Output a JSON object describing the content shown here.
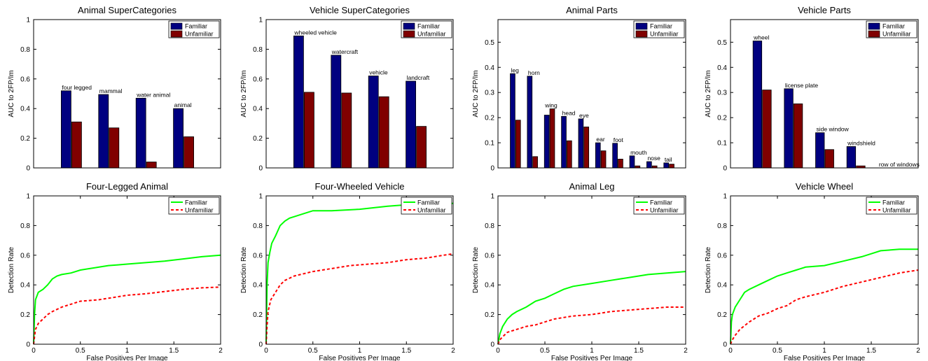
{
  "colors": {
    "familiar_bar": "#000080",
    "unfamiliar_bar": "#800000",
    "familiar_line": "#00ff00",
    "unfamiliar_line": "#ff0000"
  },
  "chart_data": [
    {
      "type": "bar",
      "title": "Animal SuperCategories",
      "xlabel": "",
      "ylabel": "AUC to 2FP/Im",
      "ylim": [
        0,
        1
      ],
      "yticks": [
        "0",
        "0.2",
        "0.4",
        "0.6",
        "0.8",
        "1"
      ],
      "categories": [
        "four legged",
        "mammal",
        "water animal",
        "animal"
      ],
      "series": [
        {
          "name": "Familiar",
          "values": [
            0.52,
            0.495,
            0.47,
            0.4
          ]
        },
        {
          "name": "Unfamiliar",
          "values": [
            0.31,
            0.27,
            0.04,
            0.21
          ]
        }
      ],
      "legend": "top-right"
    },
    {
      "type": "bar",
      "title": "Vehicle SuperCategories",
      "xlabel": "",
      "ylabel": "AUC to 2FP/Im",
      "ylim": [
        0,
        1
      ],
      "yticks": [
        "0",
        "0.2",
        "0.4",
        "0.6",
        "0.8",
        "1"
      ],
      "categories": [
        "wheeled vehicle",
        "watercraft",
        "vehicle",
        "landcraft"
      ],
      "series": [
        {
          "name": "Familiar",
          "values": [
            0.89,
            0.76,
            0.62,
            0.585
          ]
        },
        {
          "name": "Unfamiliar",
          "values": [
            0.51,
            0.505,
            0.48,
            0.28
          ]
        }
      ],
      "legend": "top-right"
    },
    {
      "type": "bar",
      "title": "Animal Parts",
      "xlabel": "",
      "ylabel": "AUC to 2FP/Im",
      "ylim": [
        0,
        0.59
      ],
      "yticks": [
        "0",
        "0.1",
        "0.2",
        "0.3",
        "0.4",
        "0.5"
      ],
      "categories": [
        "leg",
        "horn",
        "wing",
        "head",
        "eye",
        "ear",
        "foot",
        "mouth",
        "nose",
        "tail"
      ],
      "series": [
        {
          "name": "Familiar",
          "values": [
            0.375,
            0.365,
            0.21,
            0.205,
            0.195,
            0.1,
            0.098,
            0.048,
            0.025,
            0.02
          ]
        },
        {
          "name": "Unfamiliar",
          "values": [
            0.19,
            0.045,
            0.235,
            0.108,
            0.163,
            0.068,
            0.035,
            0.008,
            0.008,
            0.015
          ]
        }
      ],
      "legend": "top-right"
    },
    {
      "type": "bar",
      "title": "Vehicle Parts",
      "xlabel": "",
      "ylabel": "AUC to 2FP/Im",
      "ylim": [
        0,
        0.59
      ],
      "yticks": [
        "0",
        "0.1",
        "0.2",
        "0.3",
        "0.4",
        "0.5"
      ],
      "categories": [
        "wheel",
        "license plate",
        "side window",
        "windshield",
        "row of windows"
      ],
      "series": [
        {
          "name": "Familiar",
          "values": [
            0.505,
            0.315,
            0.14,
            0.085,
            0.0
          ]
        },
        {
          "name": "Unfamiliar",
          "values": [
            0.31,
            0.255,
            0.073,
            0.008,
            0.0
          ]
        }
      ],
      "legend": "top-right"
    },
    {
      "type": "line",
      "title": "Four-Legged Animal",
      "xlabel": "False Positives Per Image",
      "ylabel": "Detection Rate",
      "xlim": [
        0,
        2
      ],
      "ylim": [
        0,
        1
      ],
      "xticks": [
        "0",
        "0.5",
        "1",
        "1.5",
        "2"
      ],
      "yticks": [
        "0",
        "0.2",
        "0.4",
        "0.6",
        "0.8",
        "1"
      ],
      "series": [
        {
          "name": "Familiar",
          "x": [
            0,
            0.01,
            0.02,
            0.05,
            0.1,
            0.15,
            0.2,
            0.25,
            0.3,
            0.4,
            0.5,
            0.6,
            0.7,
            0.8,
            0.9,
            1.0,
            1.2,
            1.4,
            1.6,
            1.8,
            2.0
          ],
          "y": [
            0,
            0.2,
            0.3,
            0.35,
            0.37,
            0.4,
            0.44,
            0.46,
            0.47,
            0.48,
            0.5,
            0.51,
            0.52,
            0.53,
            0.535,
            0.54,
            0.55,
            0.56,
            0.575,
            0.59,
            0.6
          ]
        },
        {
          "name": "Unfamiliar",
          "x": [
            0,
            0.01,
            0.02,
            0.05,
            0.1,
            0.15,
            0.2,
            0.3,
            0.4,
            0.5,
            0.6,
            0.7,
            0.8,
            0.9,
            1.0,
            1.2,
            1.4,
            1.6,
            1.8,
            2.0
          ],
          "y": [
            0,
            0.05,
            0.1,
            0.14,
            0.17,
            0.2,
            0.22,
            0.25,
            0.27,
            0.29,
            0.295,
            0.3,
            0.31,
            0.32,
            0.33,
            0.34,
            0.355,
            0.37,
            0.38,
            0.385
          ]
        }
      ],
      "legend": "top-right"
    },
    {
      "type": "line",
      "title": "Four-Wheeled Vehicle",
      "xlabel": "False Positives Per Image",
      "ylabel": "Detection Rate",
      "xlim": [
        0,
        2
      ],
      "ylim": [
        0,
        1
      ],
      "xticks": [
        "0",
        "0.5",
        "1",
        "1.5",
        "2"
      ],
      "yticks": [
        "0",
        "0.2",
        "0.4",
        "0.6",
        "0.8",
        "1"
      ],
      "series": [
        {
          "name": "Familiar",
          "x": [
            0,
            0.01,
            0.02,
            0.04,
            0.06,
            0.1,
            0.15,
            0.2,
            0.25,
            0.3,
            0.4,
            0.5,
            0.7,
            1.0,
            1.3,
            1.5,
            1.7,
            2.0
          ],
          "y": [
            0,
            0.4,
            0.55,
            0.62,
            0.68,
            0.73,
            0.8,
            0.83,
            0.85,
            0.86,
            0.88,
            0.9,
            0.9,
            0.91,
            0.93,
            0.94,
            0.94,
            0.95
          ]
        },
        {
          "name": "Unfamiliar",
          "x": [
            0,
            0.01,
            0.02,
            0.05,
            0.1,
            0.15,
            0.2,
            0.3,
            0.5,
            0.7,
            0.9,
            1.1,
            1.3,
            1.5,
            1.7,
            1.9,
            2.0
          ],
          "y": [
            0,
            0.12,
            0.22,
            0.3,
            0.35,
            0.4,
            0.43,
            0.46,
            0.49,
            0.51,
            0.53,
            0.54,
            0.55,
            0.57,
            0.58,
            0.6,
            0.61
          ]
        }
      ],
      "legend": "top-right"
    },
    {
      "type": "line",
      "title": "Animal Leg",
      "xlabel": "False Positives Per Image",
      "ylabel": "Detection Rate",
      "xlim": [
        0,
        2
      ],
      "ylim": [
        0,
        1
      ],
      "xticks": [
        "0",
        "0.5",
        "1",
        "1.5",
        "2"
      ],
      "yticks": [
        "0",
        "0.2",
        "0.4",
        "0.6",
        "0.8",
        "1"
      ],
      "series": [
        {
          "name": "Familiar",
          "x": [
            0,
            0.02,
            0.05,
            0.1,
            0.15,
            0.2,
            0.3,
            0.4,
            0.5,
            0.6,
            0.7,
            0.8,
            1.0,
            1.2,
            1.4,
            1.6,
            1.8,
            2.0
          ],
          "y": [
            0,
            0.07,
            0.12,
            0.17,
            0.2,
            0.22,
            0.25,
            0.29,
            0.31,
            0.34,
            0.37,
            0.39,
            0.41,
            0.43,
            0.45,
            0.47,
            0.48,
            0.49
          ]
        },
        {
          "name": "Unfamiliar",
          "x": [
            0,
            0.02,
            0.05,
            0.1,
            0.2,
            0.3,
            0.4,
            0.5,
            0.6,
            0.7,
            0.8,
            1.0,
            1.2,
            1.4,
            1.6,
            1.8,
            2.0
          ],
          "y": [
            0,
            0.03,
            0.05,
            0.08,
            0.1,
            0.12,
            0.13,
            0.15,
            0.17,
            0.18,
            0.19,
            0.2,
            0.22,
            0.23,
            0.24,
            0.25,
            0.25
          ]
        }
      ],
      "legend": "top-right"
    },
    {
      "type": "line",
      "title": "Vehicle Wheel",
      "xlabel": "False Positives Per Image",
      "ylabel": "Detection Rate",
      "xlim": [
        0,
        2
      ],
      "ylim": [
        0,
        1
      ],
      "xticks": [
        "0",
        "0.5",
        "1",
        "1.5",
        "2"
      ],
      "yticks": [
        "0",
        "0.2",
        "0.4",
        "0.6",
        "0.8",
        "1"
      ],
      "series": [
        {
          "name": "Familiar",
          "x": [
            0,
            0.01,
            0.02,
            0.05,
            0.1,
            0.15,
            0.2,
            0.3,
            0.4,
            0.5,
            0.6,
            0.7,
            0.8,
            1.0,
            1.2,
            1.4,
            1.5,
            1.6,
            1.8,
            2.0
          ],
          "y": [
            0,
            0.15,
            0.2,
            0.25,
            0.3,
            0.35,
            0.37,
            0.4,
            0.43,
            0.46,
            0.48,
            0.5,
            0.52,
            0.53,
            0.56,
            0.59,
            0.61,
            0.63,
            0.64,
            0.64
          ]
        },
        {
          "name": "Unfamiliar",
          "x": [
            0,
            0.02,
            0.05,
            0.1,
            0.2,
            0.3,
            0.4,
            0.5,
            0.6,
            0.7,
            0.8,
            1.0,
            1.2,
            1.4,
            1.6,
            1.8,
            2.0
          ],
          "y": [
            0,
            0.03,
            0.06,
            0.1,
            0.15,
            0.19,
            0.21,
            0.24,
            0.26,
            0.3,
            0.32,
            0.35,
            0.39,
            0.42,
            0.45,
            0.48,
            0.5
          ]
        }
      ],
      "legend": "top-right"
    }
  ]
}
